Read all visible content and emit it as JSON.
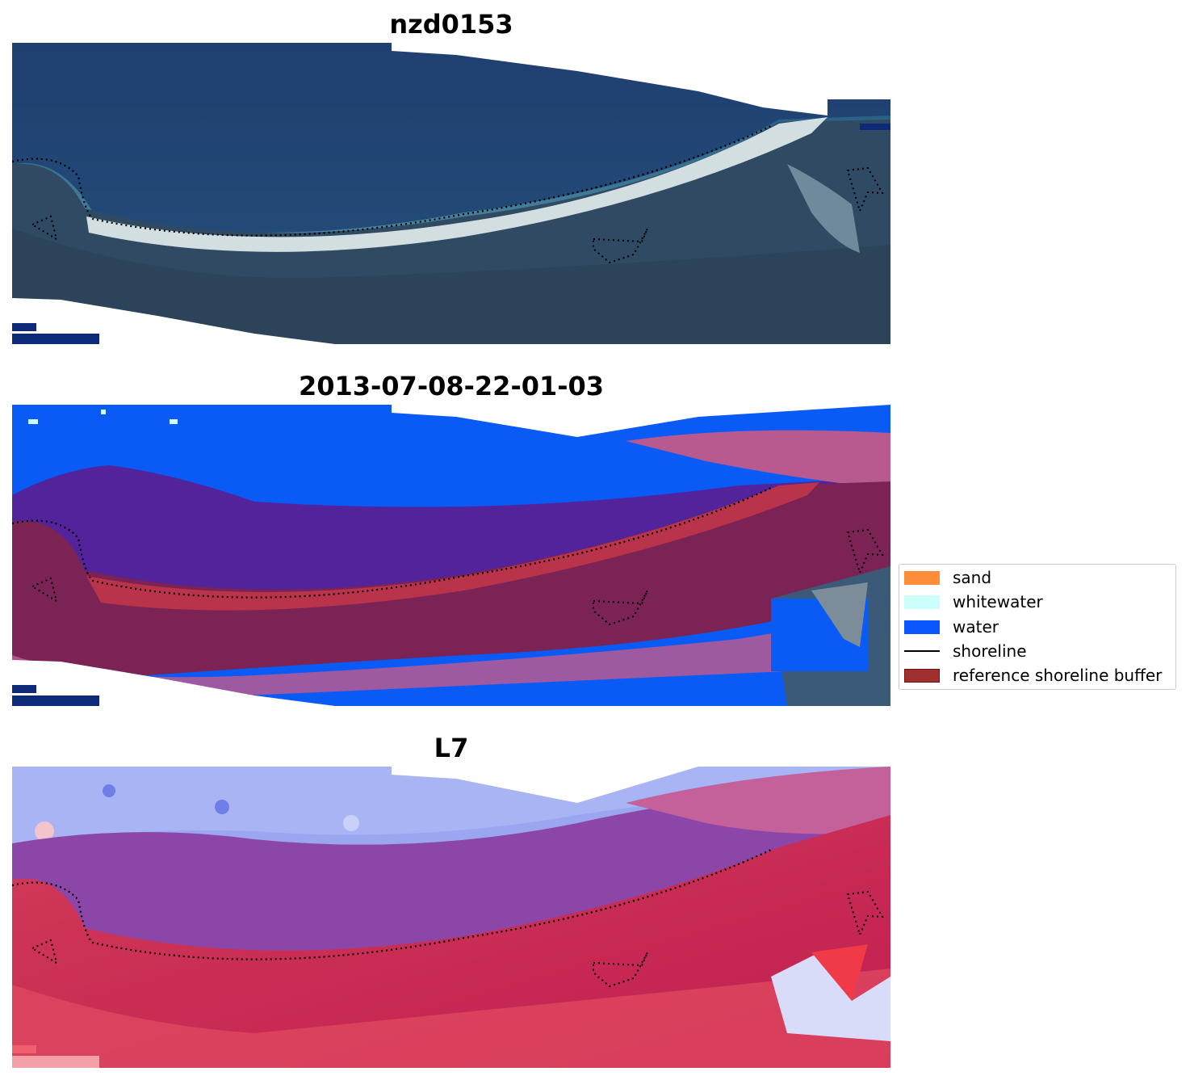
{
  "panels": [
    {
      "title": "nzd0153",
      "kind": "rgb"
    },
    {
      "title": "2013-07-08-22-01-03",
      "kind": "classified"
    },
    {
      "title": "L7",
      "kind": "mndwi"
    }
  ],
  "legend": {
    "items": [
      {
        "label": "sand",
        "type": "patch",
        "color": "#ff8c38"
      },
      {
        "label": "whitewater",
        "type": "patch",
        "color": "#ccfffc"
      },
      {
        "label": "water",
        "type": "patch",
        "color": "#0a56ff"
      },
      {
        "label": "shoreline",
        "type": "line",
        "color": "#000000"
      },
      {
        "label": "reference shoreline buffer",
        "type": "patch",
        "color": "#a03030"
      }
    ]
  },
  "colors": {
    "ocean_deep": "#1c3f72",
    "land_dark": "#2c4660",
    "beach_white": "#eaf0f0",
    "classified_water": "#0a5bf5",
    "classified_purple": "#52239a",
    "buffer_maroon": "#7a2354",
    "buffer_pink": "#b85a90",
    "index_blue": "#9aa6f0",
    "index_red": "#c8285a"
  }
}
